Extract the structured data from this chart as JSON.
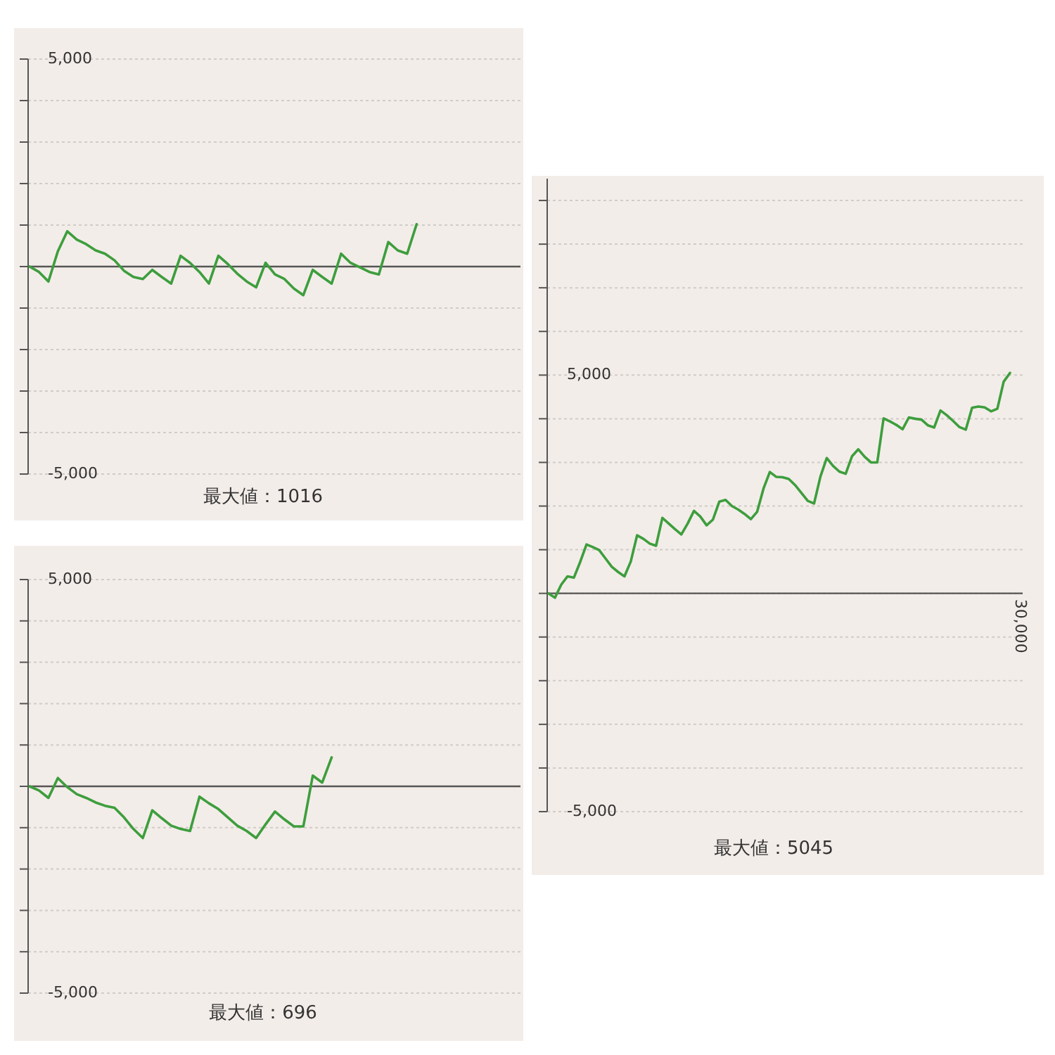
{
  "chart_data": [
    {
      "type": "line",
      "categories": [
        null,
        null,
        null,
        null,
        null,
        null,
        null,
        null,
        null,
        null,
        null,
        null,
        null,
        null,
        null,
        null,
        null,
        null,
        null,
        null,
        null,
        null,
        null,
        null,
        null,
        null,
        null,
        null,
        null,
        null,
        null,
        null,
        null,
        null,
        null,
        null,
        null,
        null,
        null,
        null,
        null,
        null,
        null,
        null,
        null,
        null,
        null,
        null,
        null,
        null,
        null,
        null,
        null
      ],
      "series": [
        {
          "color": "#3d9e3d",
          "values": [
            0,
            -130,
            -360,
            370,
            850,
            650,
            540,
            390,
            310,
            150,
            -100,
            -250,
            -300,
            -80,
            -250,
            -410,
            260,
            90,
            -130,
            -410,
            260,
            60,
            -170,
            -360,
            -500,
            90,
            -190,
            -300,
            -530,
            -690,
            -80,
            -250,
            -410,
            310,
            90,
            -20,
            -130,
            -190,
            590,
            390,
            310,
            1020,
            null,
            null,
            null,
            null,
            null,
            null,
            null,
            null,
            null,
            null,
            null
          ]
        }
      ],
      "ylim": [
        -5000,
        5000
      ],
      "yticks": [
        {
          "value": -5000,
          "label": "-5,000"
        },
        {
          "value": -4000,
          "label": null
        },
        {
          "value": -3000,
          "label": null
        },
        {
          "value": -2000,
          "label": null
        },
        {
          "value": -1000,
          "label": null
        },
        {
          "value": 0,
          "label": null
        },
        {
          "value": 1000,
          "label": null
        },
        {
          "value": 2000,
          "label": null
        },
        {
          "value": 3000,
          "label": null
        },
        {
          "value": 4000,
          "label": null
        },
        {
          "value": 5000,
          "label": "5,000"
        }
      ],
      "grid": "y",
      "tick_labels": "y",
      "annotations": [
        "最大値：1016"
      ]
    },
    {
      "type": "line",
      "categories": [
        null,
        null,
        null,
        null,
        null,
        null,
        null,
        null,
        null,
        null,
        null,
        null,
        null,
        null,
        null,
        null,
        null,
        null,
        null,
        null,
        null,
        null,
        null,
        null,
        null,
        null,
        null,
        null,
        null,
        null,
        null,
        null,
        null,
        null,
        null,
        null,
        null,
        null,
        null,
        null,
        null,
        null,
        null,
        null,
        null,
        null,
        null,
        null,
        null,
        null,
        null,
        null,
        null
      ],
      "series": [
        {
          "color": "#3d9e3d",
          "values": [
            0,
            -100,
            -280,
            200,
            -20,
            -190,
            -280,
            -390,
            -470,
            -520,
            -750,
            -1030,
            -1250,
            -580,
            -770,
            -950,
            -1030,
            -1080,
            -250,
            -410,
            -550,
            -750,
            -950,
            -1080,
            -1250,
            -920,
            -610,
            -800,
            -970,
            -970,
            260,
            90,
            700,
            null,
            null,
            null,
            null,
            null,
            null,
            null,
            null,
            null,
            null,
            null,
            null,
            null,
            null,
            null,
            null,
            null,
            null,
            null,
            null
          ]
        }
      ],
      "ylim": [
        -5000,
        5000
      ],
      "yticks": [
        {
          "value": -5000,
          "label": "-5,000"
        },
        {
          "value": -4000,
          "label": null
        },
        {
          "value": -3000,
          "label": null
        },
        {
          "value": -2000,
          "label": null
        },
        {
          "value": -1000,
          "label": null
        },
        {
          "value": 0,
          "label": null
        },
        {
          "value": 1000,
          "label": null
        },
        {
          "value": 2000,
          "label": null
        },
        {
          "value": 3000,
          "label": null
        },
        {
          "value": 4000,
          "label": null
        },
        {
          "value": 5000,
          "label": "5,000"
        }
      ],
      "grid": "y",
      "tick_labels": "y",
      "annotations": [
        "最大値：696"
      ]
    },
    {
      "type": "line",
      "categories": [
        null,
        null,
        null,
        null,
        null,
        null,
        null,
        null,
        null,
        null,
        null,
        null,
        null,
        null,
        null,
        null,
        null,
        null,
        null,
        null,
        null,
        null,
        null,
        null,
        null,
        null,
        null,
        null,
        null,
        null,
        null,
        null,
        null,
        null,
        null,
        null,
        null,
        null,
        null,
        null,
        null,
        null,
        null,
        null,
        null,
        null,
        null,
        null,
        null,
        null,
        null,
        null,
        null,
        null,
        null,
        null,
        null,
        null,
        null,
        null,
        null,
        null,
        null,
        null,
        null,
        null,
        null,
        null,
        null,
        null,
        null,
        null,
        null,
        null,
        null,
        null
      ],
      "series": [
        {
          "color": "#3d9e3d",
          "values": [
            0,
            -100,
            200,
            390,
            360,
            720,
            1120,
            1060,
            990,
            800,
            610,
            490,
            390,
            730,
            1330,
            1250,
            1140,
            1090,
            1730,
            1600,
            1470,
            1350,
            1600,
            1890,
            1760,
            1560,
            1690,
            2100,
            2140,
            2000,
            1920,
            1820,
            1700,
            1870,
            2400,
            2780,
            2670,
            2660,
            2620,
            2480,
            2300,
            2120,
            2060,
            2670,
            3100,
            2920,
            2790,
            2740,
            3140,
            3300,
            3130,
            3000,
            3000,
            4010,
            3940,
            3860,
            3760,
            4030,
            4000,
            3980,
            3850,
            3800,
            4190,
            4080,
            3950,
            3810,
            3750,
            4250,
            4280,
            4260,
            4170,
            4230,
            4850,
            5050,
            null,
            null
          ]
        }
      ],
      "tick_labels": "y",
      "ylim": [
        -5000,
        9500
      ],
      "yticks": [
        {
          "value": -5000,
          "label": "-5,000"
        },
        {
          "value": -4000,
          "label": null
        },
        {
          "value": -3000,
          "label": null
        },
        {
          "value": -2000,
          "label": null
        },
        {
          "value": -1000,
          "label": null
        },
        {
          "value": 0,
          "label": null
        },
        {
          "value": 1000,
          "label": null
        },
        {
          "value": 2000,
          "label": null
        },
        {
          "value": 3000,
          "label": null
        },
        {
          "value": 4000,
          "label": null
        },
        {
          "value": 5000,
          "label": "5,000"
        },
        {
          "value": 6000,
          "label": null
        },
        {
          "value": 7000,
          "label": null
        },
        {
          "value": 8000,
          "label": null
        },
        {
          "value": 9000,
          "label": null
        }
      ],
      "grid": "y",
      "annotations": [
        "30,000",
        "最大値：5045"
      ]
    }
  ]
}
